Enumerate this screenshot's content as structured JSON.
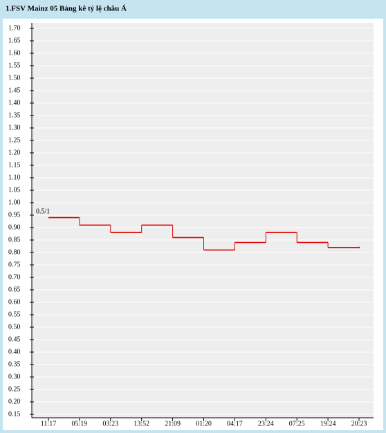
{
  "chart_data": {
    "type": "step",
    "title": "1.FSV Mainz 05 Bảng kê tỷ lệ châu Á",
    "annotation": "0.5/1",
    "categories": [
      "11:17",
      "05:19",
      "03:23",
      "13:52",
      "21:09",
      "01:20",
      "04:17",
      "23:24",
      "07:25",
      "19:24",
      "20:23"
    ],
    "series": [
      {
        "name": "0.5/1",
        "color": "#e00000",
        "values": [
          0.94,
          0.91,
          0.88,
          0.91,
          0.86,
          0.81,
          0.84,
          0.88,
          0.84,
          0.82,
          0.82
        ]
      }
    ],
    "ylim": [
      0.15,
      1.7
    ],
    "yticks": [
      {
        "value": 1.7,
        "label": "1.70"
      },
      1.65,
      {
        "value": 1.6,
        "label": "1.60"
      },
      1.55,
      {
        "value": 1.5,
        "label": "1.50"
      },
      1.45,
      {
        "value": 1.4,
        "label": "1.40"
      },
      1.35,
      {
        "value": 1.3,
        "label": "1.30"
      },
      1.25,
      {
        "value": 1.2,
        "label": "1.20"
      },
      1.15,
      {
        "value": 1.1,
        "label": "1.10"
      },
      1.05,
      {
        "value": 1.0,
        "label": "1.00"
      },
      0.95,
      {
        "value": 0.9,
        "label": "0.90"
      },
      0.85,
      {
        "value": 0.8,
        "label": "0.80"
      },
      0.75,
      {
        "value": 0.7,
        "label": "0.70"
      },
      0.65,
      {
        "value": 0.6,
        "label": "0.60"
      },
      0.55,
      {
        "value": 0.5,
        "label": "0.50"
      },
      0.45,
      {
        "value": 0.4,
        "label": "0.40"
      },
      0.35,
      {
        "value": 0.3,
        "label": "0.30"
      },
      0.25,
      {
        "value": 0.2,
        "label": "0.20"
      },
      0.15
    ],
    "grid": true
  }
}
